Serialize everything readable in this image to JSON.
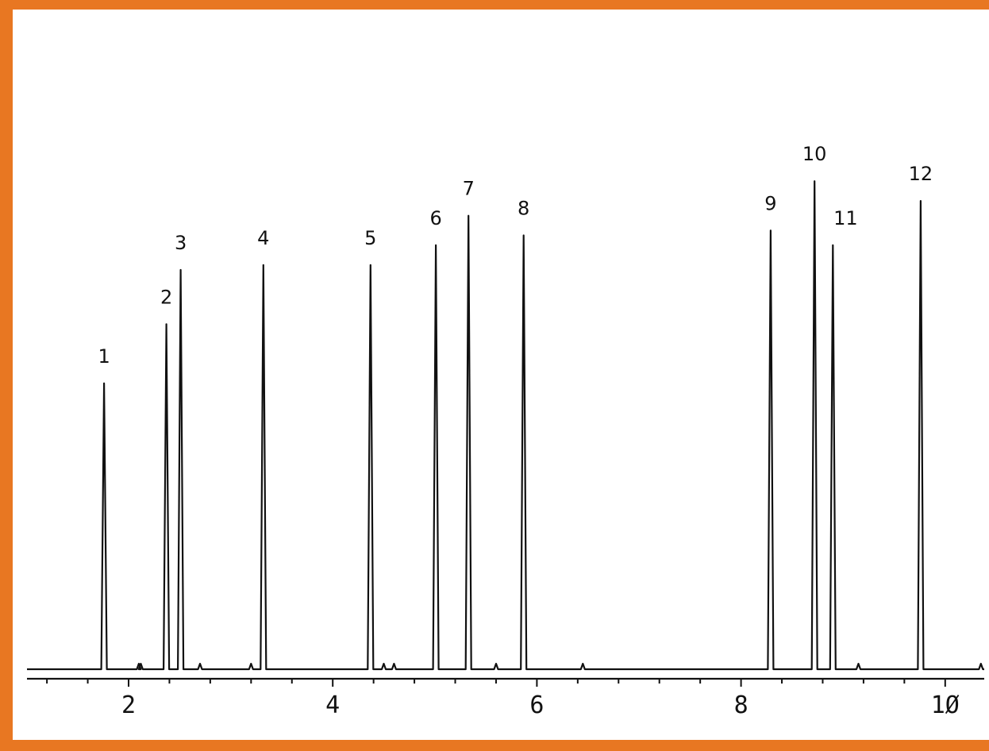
{
  "chart_data": {
    "type": "line",
    "title": "",
    "xlabel": "",
    "ylabel": "",
    "xlim": [
      1.25,
      10.4
    ],
    "ylim": [
      0,
      100
    ],
    "x_ticks_major": [
      2,
      4,
      6,
      8,
      10
    ],
    "x_tick_labels": [
      "2",
      "4",
      "6",
      "8",
      "1Ø"
    ],
    "baseline_ticks": [
      2.1,
      2.12,
      2.7,
      3.2,
      4.5,
      4.6,
      5.6,
      6.45,
      9.15,
      10.35
    ],
    "peaks": [
      {
        "label": "1",
        "x": 1.76,
        "height": 58
      },
      {
        "label": "2",
        "x": 2.37,
        "height": 70
      },
      {
        "label": "3",
        "x": 2.51,
        "height": 81
      },
      {
        "label": "4",
        "x": 3.32,
        "height": 82
      },
      {
        "label": "5",
        "x": 4.37,
        "height": 82
      },
      {
        "label": "6",
        "x": 5.01,
        "height": 86
      },
      {
        "label": "7",
        "x": 5.33,
        "height": 92
      },
      {
        "label": "8",
        "x": 5.87,
        "height": 88
      },
      {
        "label": "9",
        "x": 8.29,
        "height": 89
      },
      {
        "label": "10",
        "x": 8.72,
        "height": 99
      },
      {
        "label": "11",
        "x": 8.9,
        "height": 86
      },
      {
        "label": "12",
        "x": 9.76,
        "height": 95
      }
    ]
  },
  "colors": {
    "frame": "#e87722",
    "trace": "#111111",
    "background": "#ffffff"
  }
}
